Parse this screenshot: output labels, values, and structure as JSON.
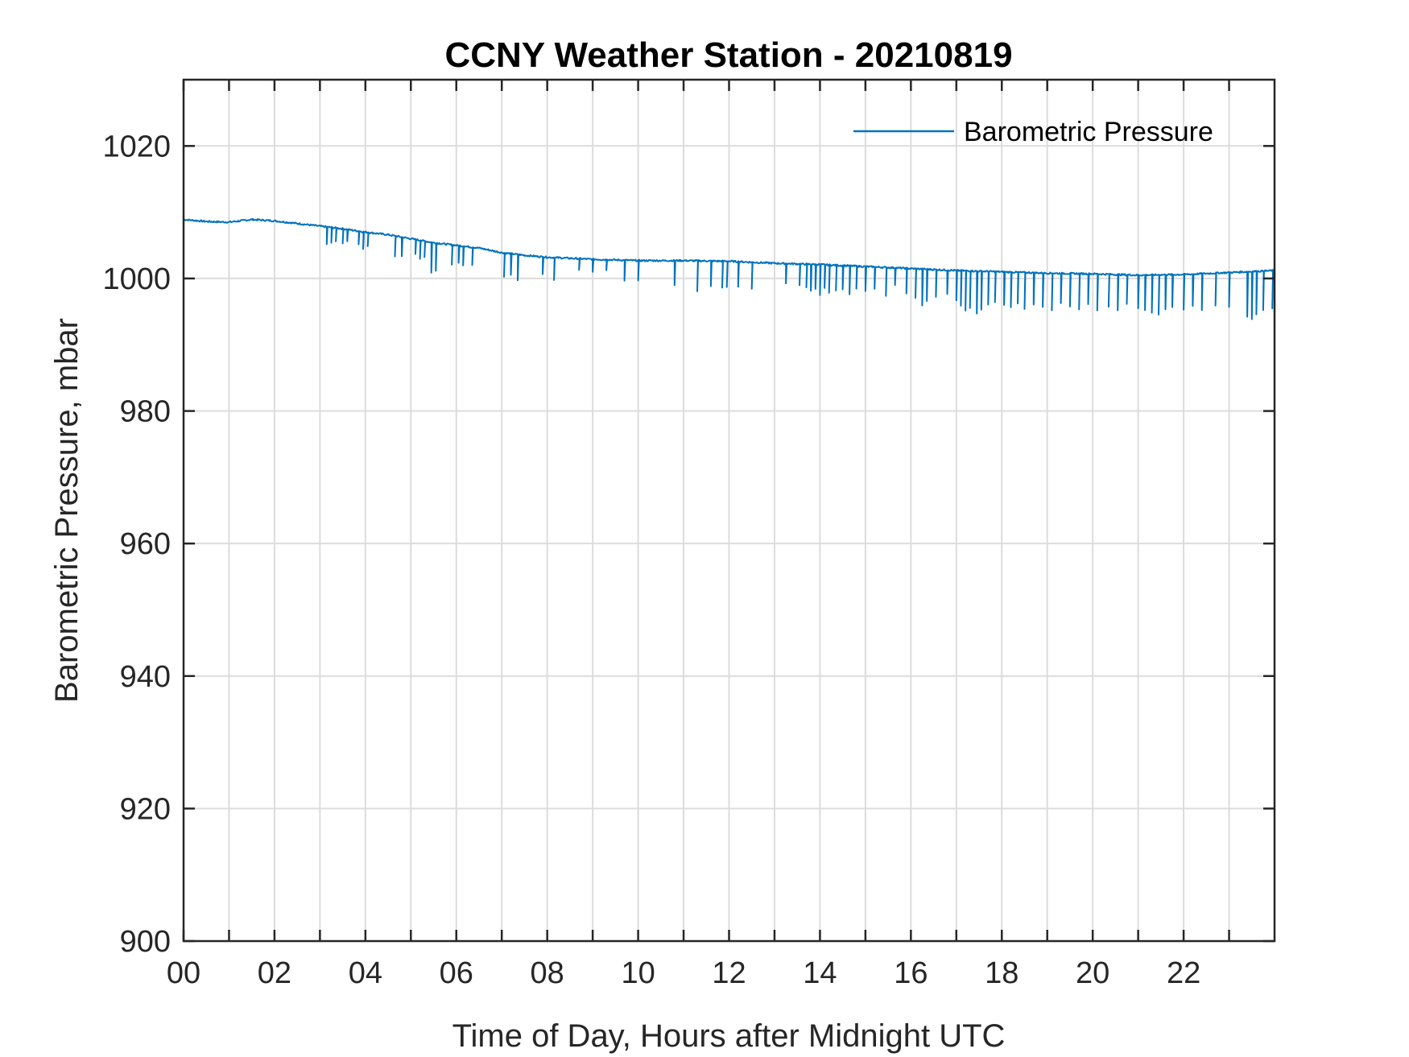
{
  "chart_data": {
    "type": "line",
    "title": "CCNY Weather Station - 20210819",
    "xlabel": "Time of Day, Hours after Midnight UTC",
    "ylabel": "Barometric Pressure, mbar",
    "xlim": [
      0,
      24
    ],
    "ylim": [
      900,
      1030
    ],
    "x_ticks": [
      0,
      2,
      4,
      6,
      8,
      10,
      12,
      14,
      16,
      18,
      20,
      22
    ],
    "x_tick_labels": [
      "00",
      "02",
      "04",
      "06",
      "08",
      "10",
      "12",
      "14",
      "16",
      "18",
      "20",
      "22"
    ],
    "x_minor_ticks": [
      1,
      3,
      5,
      7,
      9,
      11,
      13,
      15,
      17,
      19,
      21,
      23
    ],
    "y_ticks": [
      900,
      920,
      940,
      960,
      980,
      1000,
      1020
    ],
    "y_tick_labels": [
      "900",
      "920",
      "940",
      "960",
      "980",
      "1000",
      "1020"
    ],
    "grid": true,
    "legend": {
      "position": "top-right",
      "boxed": false
    },
    "series": [
      {
        "name": "Barometric Pressure",
        "color": "#0072BD",
        "baseline": {
          "x": [
            0,
            0.5,
            1,
            1.5,
            2,
            2.5,
            3,
            3.5,
            4,
            4.5,
            5,
            5.5,
            6,
            6.5,
            7,
            7.5,
            8,
            9,
            10,
            11,
            12,
            13,
            14,
            15,
            16,
            17,
            18,
            19,
            20,
            21,
            22,
            23,
            24
          ],
          "y": [
            1008.9,
            1008.6,
            1008.5,
            1008.9,
            1008.7,
            1008.3,
            1007.9,
            1007.5,
            1007.0,
            1006.6,
            1006.0,
            1005.4,
            1005.0,
            1004.6,
            1003.9,
            1003.5,
            1003.2,
            1002.9,
            1002.7,
            1002.7,
            1002.6,
            1002.3,
            1002.1,
            1001.8,
            1001.5,
            1001.2,
            1001.0,
            1000.8,
            1000.7,
            1000.5,
            1000.6,
            1000.9,
            1001.2
          ]
        },
        "dips": [
          {
            "x": 3.15,
            "depth": 2.6
          },
          {
            "x": 3.25,
            "depth": 2.3
          },
          {
            "x": 3.35,
            "depth": 2.0
          },
          {
            "x": 3.5,
            "depth": 2.2
          },
          {
            "x": 3.6,
            "depth": 1.8
          },
          {
            "x": 3.85,
            "depth": 2.0
          },
          {
            "x": 3.95,
            "depth": 2.6
          },
          {
            "x": 4.05,
            "depth": 2.1
          },
          {
            "x": 4.65,
            "depth": 3.1
          },
          {
            "x": 4.8,
            "depth": 2.9
          },
          {
            "x": 5.1,
            "depth": 2.2
          },
          {
            "x": 5.2,
            "depth": 2.8
          },
          {
            "x": 5.3,
            "depth": 2.4
          },
          {
            "x": 5.45,
            "depth": 4.6
          },
          {
            "x": 5.55,
            "depth": 4.2
          },
          {
            "x": 5.9,
            "depth": 3.0
          },
          {
            "x": 6.05,
            "depth": 2.6
          },
          {
            "x": 6.15,
            "depth": 2.9
          },
          {
            "x": 6.35,
            "depth": 2.7
          },
          {
            "x": 7.05,
            "depth": 3.6
          },
          {
            "x": 7.2,
            "depth": 3.2
          },
          {
            "x": 7.35,
            "depth": 3.9
          },
          {
            "x": 7.9,
            "depth": 2.6
          },
          {
            "x": 8.15,
            "depth": 3.4
          },
          {
            "x": 8.7,
            "depth": 1.7
          },
          {
            "x": 9.0,
            "depth": 1.9
          },
          {
            "x": 9.3,
            "depth": 1.6
          },
          {
            "x": 9.7,
            "depth": 3.1
          },
          {
            "x": 10.0,
            "depth": 3.0
          },
          {
            "x": 10.8,
            "depth": 3.7
          },
          {
            "x": 11.3,
            "depth": 4.6
          },
          {
            "x": 11.6,
            "depth": 3.8
          },
          {
            "x": 11.85,
            "depth": 4.0
          },
          {
            "x": 11.95,
            "depth": 3.9
          },
          {
            "x": 12.2,
            "depth": 3.8
          },
          {
            "x": 12.5,
            "depth": 4.0
          },
          {
            "x": 13.25,
            "depth": 3.0
          },
          {
            "x": 13.55,
            "depth": 3.2
          },
          {
            "x": 13.7,
            "depth": 3.5
          },
          {
            "x": 13.8,
            "depth": 4.0
          },
          {
            "x": 13.9,
            "depth": 3.7
          },
          {
            "x": 14.0,
            "depth": 4.6
          },
          {
            "x": 14.1,
            "depth": 3.5
          },
          {
            "x": 14.2,
            "depth": 4.2
          },
          {
            "x": 14.35,
            "depth": 3.8
          },
          {
            "x": 14.5,
            "depth": 3.6
          },
          {
            "x": 14.65,
            "depth": 4.3
          },
          {
            "x": 14.8,
            "depth": 3.4
          },
          {
            "x": 15.0,
            "depth": 3.7
          },
          {
            "x": 15.2,
            "depth": 3.3
          },
          {
            "x": 15.45,
            "depth": 4.3
          },
          {
            "x": 15.65,
            "depth": 2.6
          },
          {
            "x": 15.9,
            "depth": 3.8
          },
          {
            "x": 16.1,
            "depth": 4.4
          },
          {
            "x": 16.25,
            "depth": 5.5
          },
          {
            "x": 16.35,
            "depth": 4.8
          },
          {
            "x": 16.55,
            "depth": 4.1
          },
          {
            "x": 16.8,
            "depth": 3.6
          },
          {
            "x": 17.0,
            "depth": 4.5
          },
          {
            "x": 17.1,
            "depth": 5.3
          },
          {
            "x": 17.2,
            "depth": 6.0
          },
          {
            "x": 17.3,
            "depth": 5.6
          },
          {
            "x": 17.45,
            "depth": 6.4
          },
          {
            "x": 17.55,
            "depth": 5.8
          },
          {
            "x": 17.7,
            "depth": 5.0
          },
          {
            "x": 17.85,
            "depth": 4.6
          },
          {
            "x": 18.05,
            "depth": 5.0
          },
          {
            "x": 18.2,
            "depth": 5.3
          },
          {
            "x": 18.35,
            "depth": 4.7
          },
          {
            "x": 18.5,
            "depth": 5.5
          },
          {
            "x": 18.7,
            "depth": 4.8
          },
          {
            "x": 18.9,
            "depth": 5.1
          },
          {
            "x": 19.1,
            "depth": 5.6
          },
          {
            "x": 19.3,
            "depth": 4.5
          },
          {
            "x": 19.5,
            "depth": 5.0
          },
          {
            "x": 19.7,
            "depth": 5.4
          },
          {
            "x": 19.9,
            "depth": 4.6
          },
          {
            "x": 20.1,
            "depth": 5.5
          },
          {
            "x": 20.35,
            "depth": 4.9
          },
          {
            "x": 20.55,
            "depth": 5.4
          },
          {
            "x": 20.75,
            "depth": 4.4
          },
          {
            "x": 21.0,
            "depth": 5.0
          },
          {
            "x": 21.15,
            "depth": 5.3
          },
          {
            "x": 21.3,
            "depth": 5.7
          },
          {
            "x": 21.45,
            "depth": 6.0
          },
          {
            "x": 21.6,
            "depth": 5.2
          },
          {
            "x": 21.75,
            "depth": 4.9
          },
          {
            "x": 22.0,
            "depth": 5.3
          },
          {
            "x": 22.2,
            "depth": 4.8
          },
          {
            "x": 22.4,
            "depth": 5.5
          },
          {
            "x": 22.7,
            "depth": 4.9
          },
          {
            "x": 23.0,
            "depth": 5.2
          },
          {
            "x": 23.4,
            "depth": 6.8
          },
          {
            "x": 23.5,
            "depth": 7.2
          },
          {
            "x": 23.6,
            "depth": 6.5
          },
          {
            "x": 23.75,
            "depth": 5.9
          },
          {
            "x": 23.95,
            "depth": 5.7
          }
        ]
      }
    ]
  }
}
